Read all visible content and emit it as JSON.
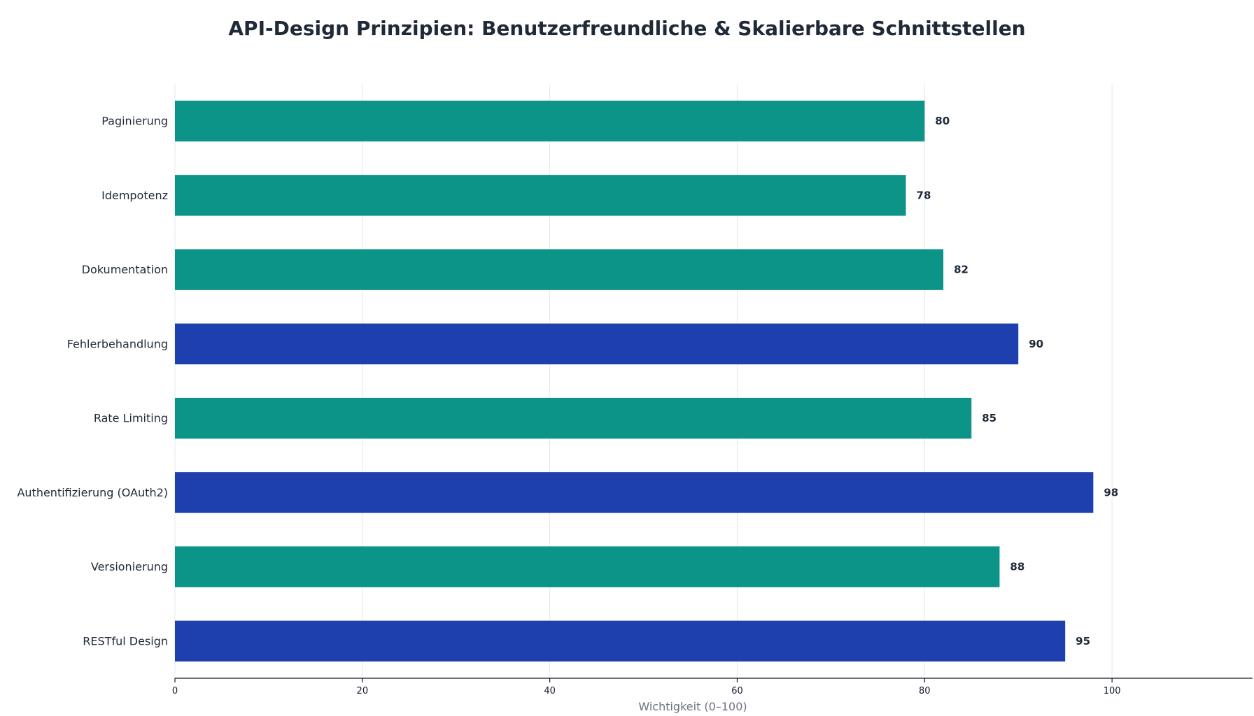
{
  "chart_data": {
    "type": "bar",
    "orientation": "horizontal",
    "title": "API-Design Prinzipien: Benutzerfreundliche & Skalierbare Schnittstellen",
    "xlabel": "Wichtigkeit (0–100)",
    "ylabel": "",
    "xlim": [
      0,
      115
    ],
    "xticks": [
      0,
      20,
      40,
      60,
      80,
      100
    ],
    "grid": "vertical",
    "categories": [
      "RESTful Design",
      "Versionierung",
      "Authentifizierung (OAuth2)",
      "Rate Limiting",
      "Fehlerbehandlung",
      "Dokumentation",
      "Idempotenz",
      "Paginierung"
    ],
    "values": [
      95,
      88,
      98,
      85,
      90,
      82,
      78,
      80
    ],
    "bar_colors": [
      "#1e40af",
      "#0d9488",
      "#1e40af",
      "#0d9488",
      "#1e40af",
      "#0d9488",
      "#0d9488",
      "#0d9488"
    ]
  }
}
